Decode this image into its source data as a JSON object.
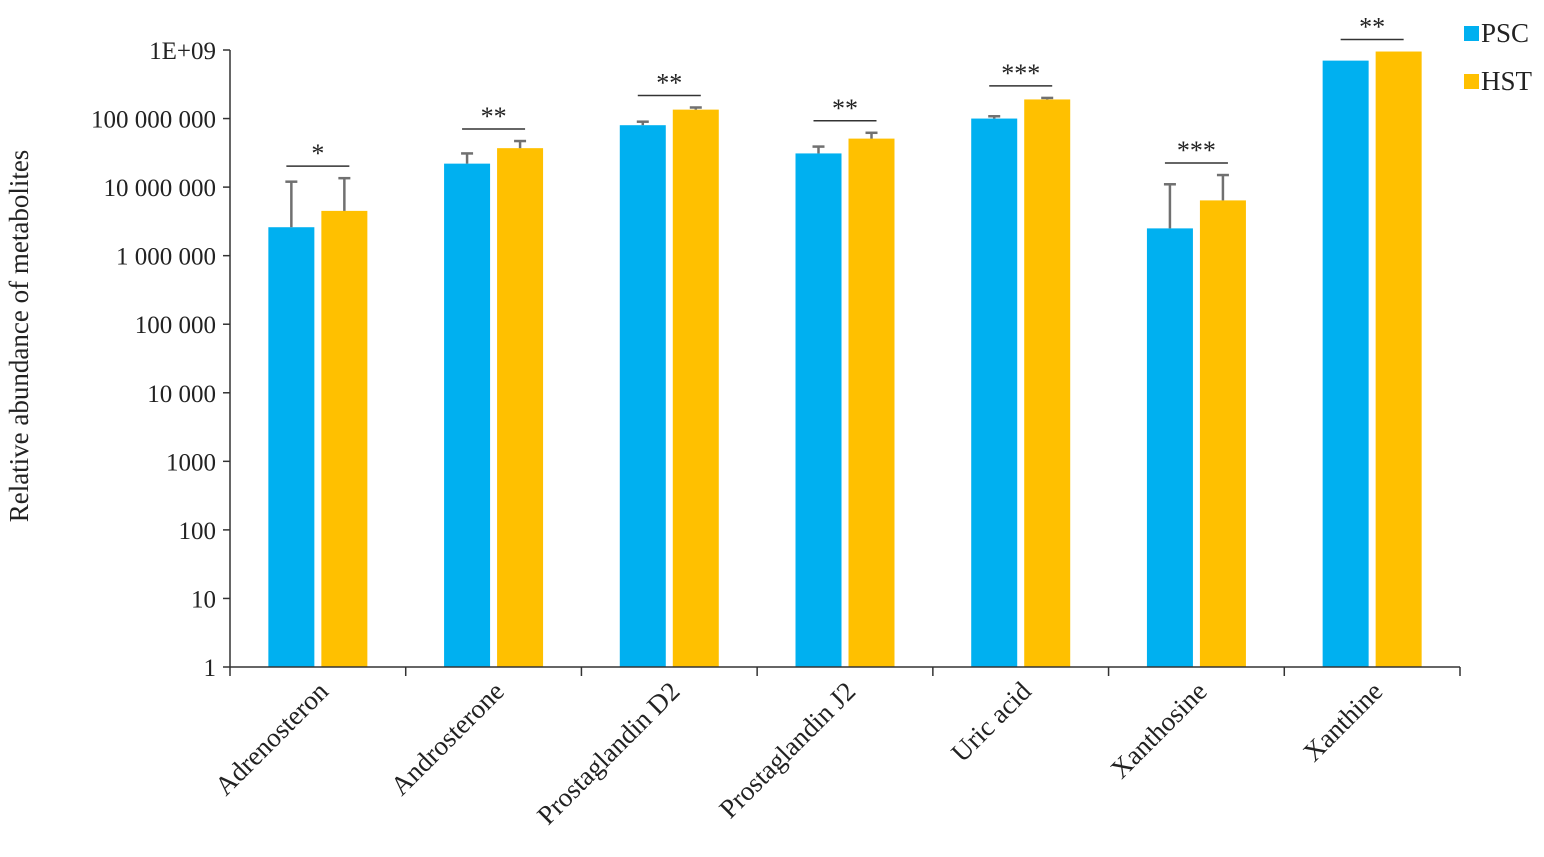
{
  "chart_data": {
    "type": "bar",
    "ylabel": "Relative abundance of metabolites",
    "xlabel": "",
    "yscale": "log",
    "ylim": [
      1,
      1000000000
    ],
    "yticks": [
      1,
      10,
      100,
      1000,
      10000,
      100000,
      1000000,
      10000000,
      100000000,
      1000000000
    ],
    "ytick_labels": [
      "1",
      "10",
      "100",
      "1000",
      "10 000",
      "100 000",
      "1 000 000",
      "10 000 000",
      "100 000 000",
      "1E+09"
    ],
    "categories": [
      "Adrenosteron",
      "Androsterone",
      "Prostaglandin D2",
      "Prostaglandin J2",
      "Uric acid",
      "Xanthosine",
      "Xanthine"
    ],
    "series": [
      {
        "name": "PSC",
        "color": "#00b0f0",
        "values": [
          2600000,
          22000000,
          80000000,
          31000000,
          100000000,
          2500000,
          700000000
        ],
        "error_upper": [
          12000000,
          31000000,
          90000000,
          39000000,
          108000000,
          11000000,
          null
        ]
      },
      {
        "name": "HST",
        "color": "#ffc000",
        "values": [
          4500000,
          37000000,
          135000000,
          51000000,
          190000000,
          6400000,
          950000000
        ],
        "error_upper": [
          13500000,
          47000000,
          145000000,
          62000000,
          200000000,
          15000000,
          null
        ]
      }
    ],
    "significance": [
      "*",
      "**",
      "**",
      "**",
      "***",
      "***",
      "**"
    ],
    "legend": {
      "position": "top-right",
      "entries": [
        "PSC",
        "HST"
      ]
    },
    "grid": false
  }
}
